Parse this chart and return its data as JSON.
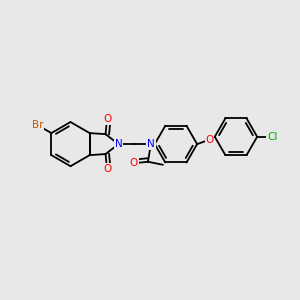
{
  "background_color": "#e8e8e8",
  "bond_color": "#000000",
  "atom_colors": {
    "Br": "#cc5500",
    "O": "#ff0000",
    "N": "#0000ff",
    "Cl": "#00aa00",
    "C": "#000000"
  },
  "figsize": [
    3.0,
    3.0
  ],
  "dpi": 100
}
